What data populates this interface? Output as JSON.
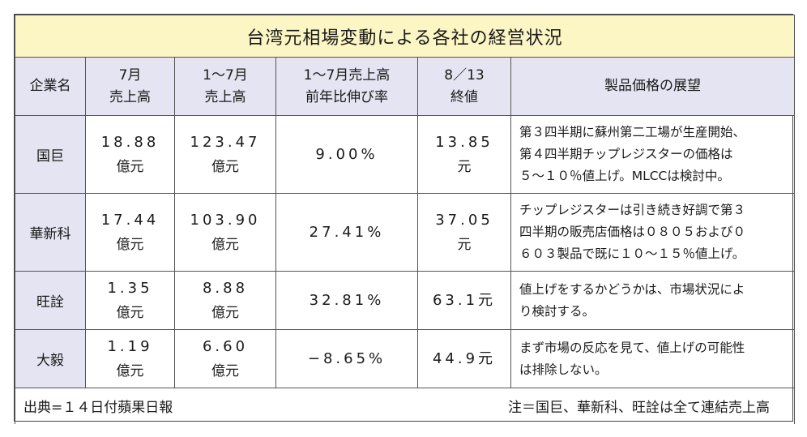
{
  "title": "台湾元相場変動による各社の経営状況",
  "headers": {
    "company": "企業名",
    "jul_sales_1": "7月",
    "jul_sales_2": "売上高",
    "ytd_sales_1": "1〜7月",
    "ytd_sales_2": "売上高",
    "growth_1": "1〜7月売上高",
    "growth_2": "前年比伸び率",
    "close_1": "8／13",
    "close_2": "終値",
    "outlook": "製品価格の展望"
  },
  "unit_oku": "億元",
  "unit_gen": "元",
  "rows": [
    {
      "company": "国巨",
      "jul_sales": "18.88",
      "ytd_sales": "123.47",
      "growth": "9.00%",
      "close": "13.85",
      "outlook_lines": [
        "第３四半期に蘇州第二工場が生産開始、",
        "第４四半期チップレジスターの価格は",
        "５〜１０％値上げ。MLCCは検討中。"
      ]
    },
    {
      "company": "華新科",
      "jul_sales": "17.44",
      "ytd_sales": "103.90",
      "growth": "27.41%",
      "close": "37.05",
      "outlook_lines": [
        "チップレジスターは引き続き好調で第３",
        "四半期の販売店価格は０８０５および０",
        "６０３製品で既に１０〜１５％値上げ。"
      ]
    },
    {
      "company": "旺詮",
      "jul_sales": "1.35",
      "ytd_sales": "8.88",
      "growth": "32.81%",
      "close": "63.1元",
      "outlook_lines": [
        "値上げをするかどうかは、市場状況によ",
        "り検討する。"
      ]
    },
    {
      "company": "大毅",
      "jul_sales": "1.19",
      "ytd_sales": "6.60",
      "growth": "−8.65%",
      "close": "44.9元",
      "outlook_lines": [
        "まず市場の反応を見て、値上げの可能性",
        "は排除しない。"
      ]
    }
  ],
  "footer": {
    "source": "出典=１４日付蘋果日報",
    "remark": "注＝国巨、華新科、旺詮は全て連結売上高"
  }
}
